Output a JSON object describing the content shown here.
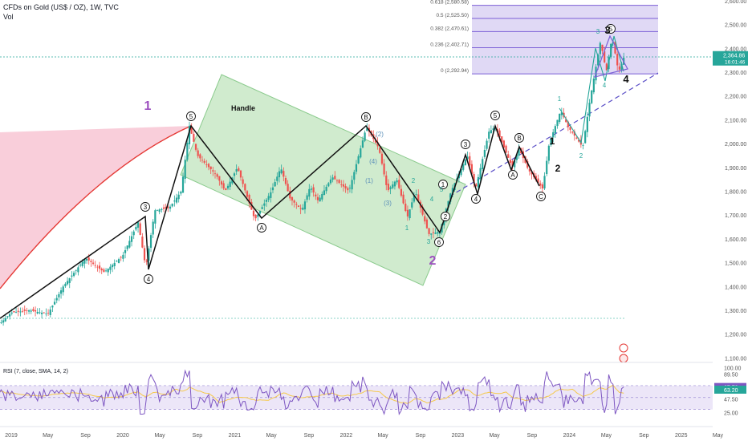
{
  "header": {
    "symbol_line": "CFDs on Gold (US$ / OZ), 1W, TVC",
    "vol_label": "Vol"
  },
  "rsi_label": "RSI (7, close, SMA, 14, 2)",
  "colors": {
    "channel_fill": "#b7e1b4",
    "channel_stroke": "#4caf50",
    "fib_fill": "#d8d0f2",
    "fib_line": "#7b5fd6",
    "pink_fill": "#f8c6d3",
    "red_curve": "#e53935",
    "wave_purple": "#9c4fbf",
    "wave_teal": "#26a69a",
    "wave_blue": "#5b8fb9",
    "price_badge": "#26a69a",
    "rsi_line": "#7e57c2",
    "rsi_ma": "#f5c94b"
  },
  "chart_data": {
    "type": "candlestick",
    "title": "CFDs on Gold (US$ / OZ), 1W, TVC",
    "y_ticks": [
      "2,500.00",
      "2,400.00",
      "2,300.00",
      "2,200.00",
      "2,100.00",
      "2,000.00",
      "1,900.00",
      "1,800.00",
      "1,700.00",
      "1,600.00",
      "1,500.00",
      "1,400.00",
      "1,300.00",
      "1,200.00",
      "1,100.00"
    ],
    "y_top_label": "2,600.00",
    "x_ticks": [
      "2019",
      "May",
      "Sep",
      "2020",
      "May",
      "Sep",
      "2021",
      "May",
      "Sep",
      "2022",
      "May",
      "Sep",
      "2023",
      "May",
      "Sep",
      "2024",
      "May",
      "Sep",
      "2025",
      "May"
    ],
    "ylim": [
      1080,
      2620
    ],
    "current_price": {
      "price": 2364.86,
      "label": "2,364.86",
      "countdown": "16:01:46"
    },
    "price_anchors": [
      [
        "2018-11-01",
        1215
      ],
      [
        "2019-01-01",
        1290
      ],
      [
        "2019-03-01",
        1300
      ],
      [
        "2019-05-01",
        1285
      ],
      [
        "2019-06-20",
        1400
      ],
      [
        "2019-09-01",
        1520
      ],
      [
        "2019-11-01",
        1460
      ],
      [
        "2020-01-01",
        1530
      ],
      [
        "2020-02-20",
        1670
      ],
      [
        "2020-03-16",
        1480
      ],
      [
        "2020-04-15",
        1720
      ],
      [
        "2020-06-01",
        1730
      ],
      [
        "2020-07-10",
        1800
      ],
      [
        "2020-08-06",
        2075
      ],
      [
        "2020-09-01",
        1950
      ],
      [
        "2020-11-01",
        1870
      ],
      [
        "2020-12-01",
        1800
      ],
      [
        "2021-01-10",
        1900
      ],
      [
        "2021-03-08",
        1680
      ],
      [
        "2021-05-01",
        1800
      ],
      [
        "2021-06-01",
        1900
      ],
      [
        "2021-07-01",
        1770
      ],
      [
        "2021-08-09",
        1720
      ],
      [
        "2021-09-05",
        1820
      ],
      [
        "2021-10-01",
        1760
      ],
      [
        "2021-11-16",
        1860
      ],
      [
        "2022-01-10",
        1800
      ],
      [
        "2022-03-08",
        2070
      ],
      [
        "2022-04-18",
        1980
      ],
      [
        "2022-05-16",
        1800
      ],
      [
        "2022-06-15",
        1850
      ],
      [
        "2022-07-20",
        1690
      ],
      [
        "2022-08-15",
        1800
      ],
      [
        "2022-09-28",
        1620
      ],
      [
        "2022-11-03",
        1630
      ],
      [
        "2022-12-10",
        1800
      ],
      [
        "2023-02-01",
        1950
      ],
      [
        "2023-02-28",
        1810
      ],
      [
        "2023-04-13",
        2050
      ],
      [
        "2023-05-04",
        2070
      ],
      [
        "2023-06-28",
        1900
      ],
      [
        "2023-07-20",
        1980
      ],
      [
        "2023-08-20",
        1890
      ],
      [
        "2023-10-06",
        1810
      ],
      [
        "2023-10-27",
        2000
      ],
      [
        "2023-12-04",
        2140
      ],
      [
        "2023-12-28",
        2070
      ],
      [
        "2024-01-20",
        2030
      ],
      [
        "2024-02-14",
        1985
      ],
      [
        "2024-03-08",
        2180
      ],
      [
        "2024-04-12",
        2430
      ],
      [
        "2024-05-01",
        2300
      ],
      [
        "2024-05-20",
        2450
      ],
      [
        "2024-06-10",
        2300
      ],
      [
        "2024-06-28",
        2364
      ]
    ],
    "rsi_ticks": [
      "100.00",
      "89.50",
      "67.70",
      "63.20",
      "47.50",
      "25.00"
    ],
    "rsi_current": {
      "rsi": 67.7,
      "rsi_ma": 63.2
    },
    "fib_levels": [
      {
        "ratio": "0.618",
        "label": "0.618 (2,580.58)",
        "price": 2580.58
      },
      {
        "ratio": "0.5",
        "label": "0.5 (2,525.50)",
        "price": 2525.5
      },
      {
        "ratio": "0.382",
        "label": "0.382 (2,470.61)",
        "price": 2470.61
      },
      {
        "ratio": "0.236",
        "label": "0.236 (2,402.71)",
        "price": 2402.71
      },
      {
        "ratio": "0",
        "label": "0 (2,292.94)",
        "price": 2292.94
      }
    ],
    "annotations": {
      "handle": "Handle",
      "big_1": "1",
      "big_2": "2",
      "big_3": "3",
      "big_4": "4",
      "black_1": "1",
      "black_2": "2",
      "circled": [
        "3",
        "4",
        "5",
        "A",
        "B",
        "1",
        "2",
        "3",
        "4",
        "5",
        "A",
        "B",
        "C",
        "5",
        "6"
      ],
      "paren": [
        "(1)",
        "(2)",
        "(3)",
        "(4)"
      ],
      "green": [
        "1",
        "2",
        "3",
        "4",
        "5",
        "1",
        "2",
        "3",
        "4"
      ]
    }
  }
}
